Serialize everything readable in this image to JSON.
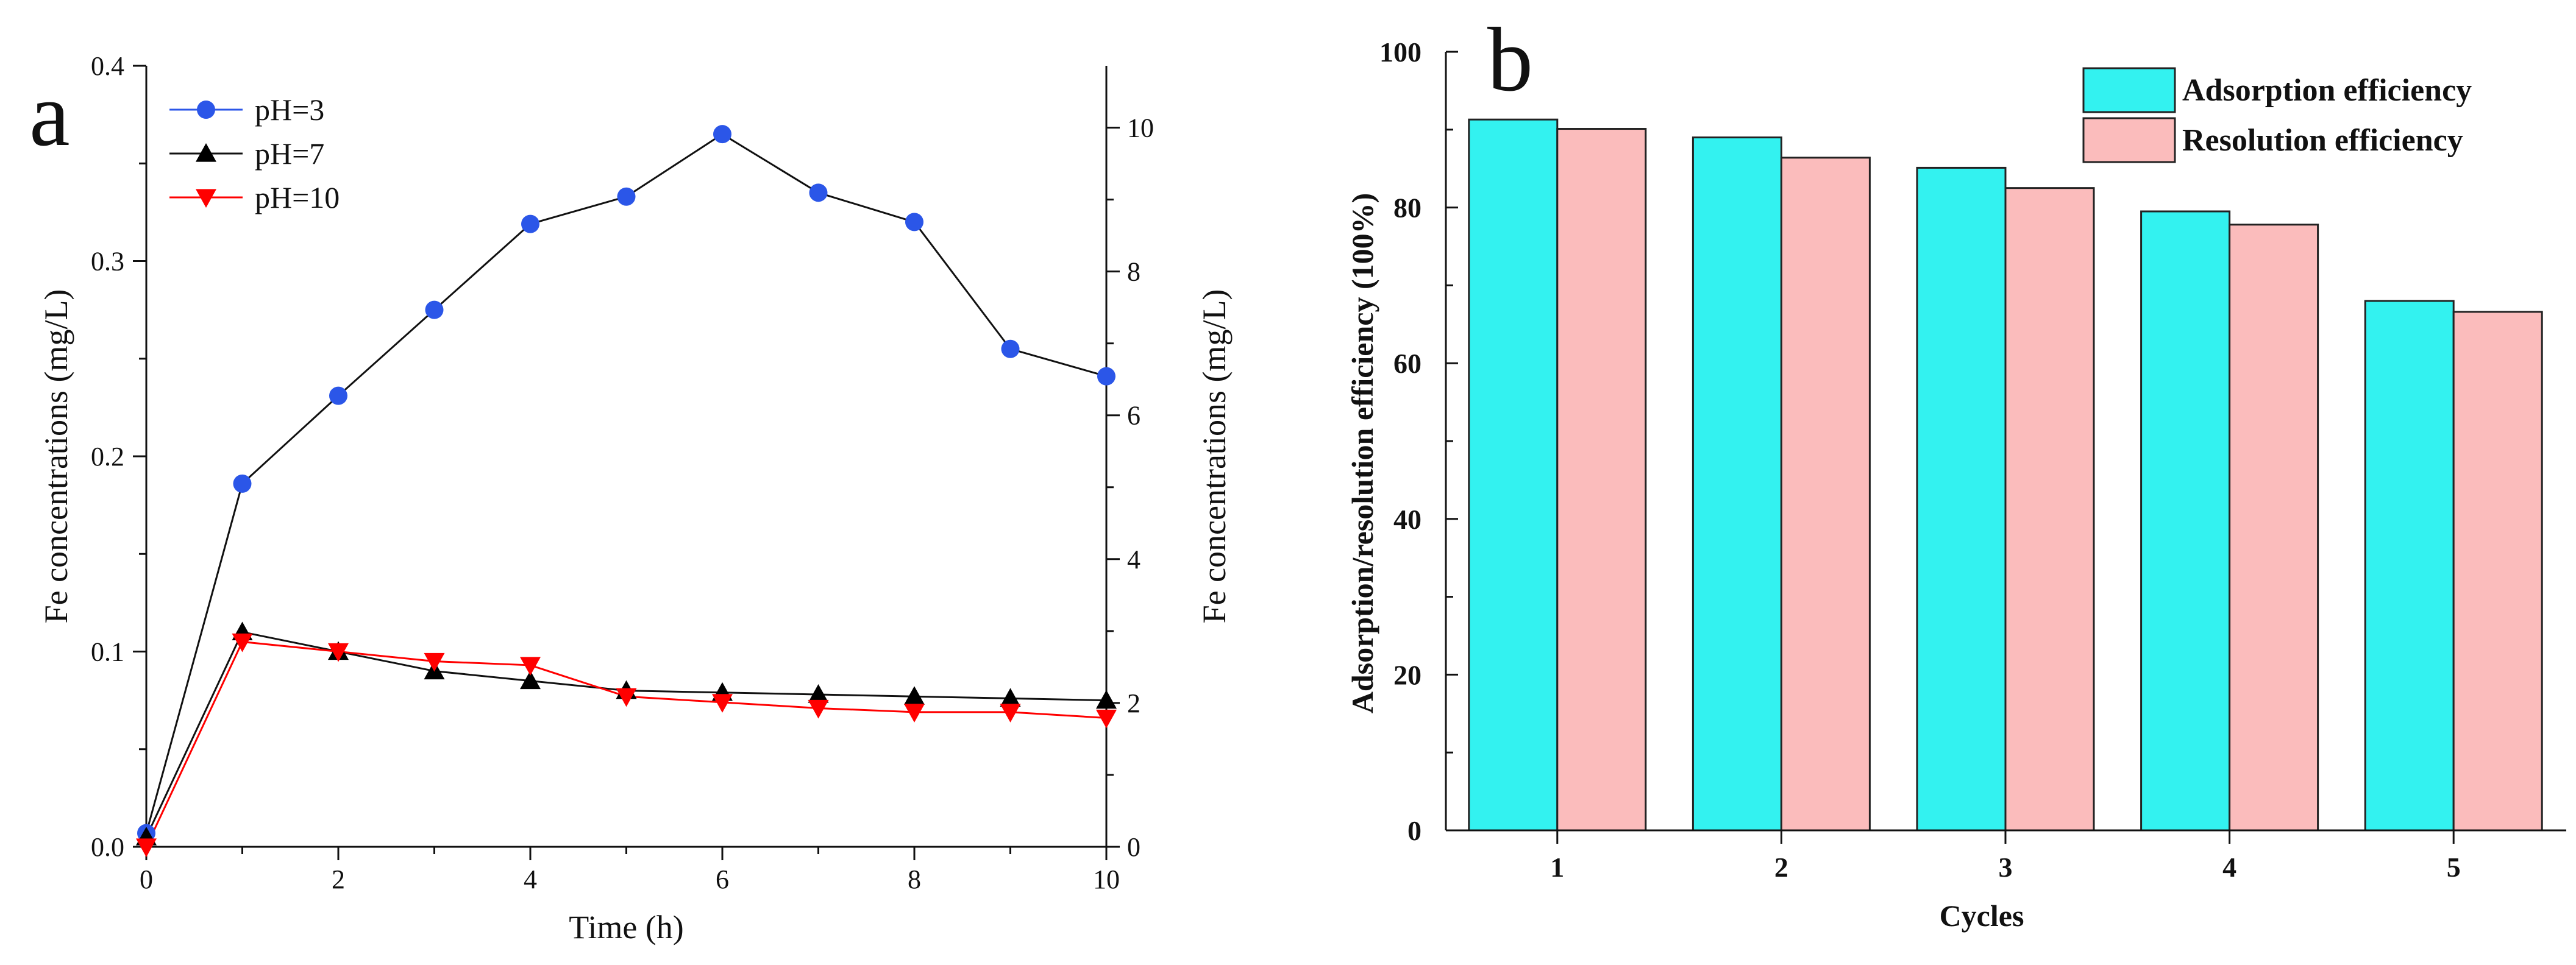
{
  "chart_data": [
    {
      "type": "line",
      "panel_label": "a",
      "xlabel": "Time (h)",
      "ylabel": "Fe concentrations (mg/L)",
      "ylabel_right": "Fe concentrations (mg/L)",
      "xlim": [
        0,
        10
      ],
      "ylim": [
        0,
        0.4
      ],
      "ylim_right": [
        0,
        10.86
      ],
      "x_ticks": [
        0,
        2,
        4,
        6,
        8,
        10
      ],
      "y_ticks": [
        0.0,
        0.1,
        0.2,
        0.3,
        0.4
      ],
      "y_tick_labels": [
        "0.0",
        "0.1",
        "0.2",
        "0.3",
        "0.4"
      ],
      "y_right_ticks": [
        0,
        2,
        4,
        6,
        8,
        10
      ],
      "legend_position": "top-left",
      "x": [
        0,
        1,
        2,
        3,
        4,
        5,
        6,
        7,
        8,
        9,
        10
      ],
      "series": [
        {
          "name": "pH=3",
          "marker": "circle",
          "color": "#2b56e8",
          "line_color": "#111111",
          "values": [
            0.007,
            0.186,
            0.231,
            0.275,
            0.319,
            0.333,
            0.365,
            0.335,
            0.32,
            0.255,
            0.241
          ]
        },
        {
          "name": "pH=7",
          "marker": "triangle-up",
          "color": "#000000",
          "line_color": "#111111",
          "values": [
            0.005,
            0.11,
            0.1,
            0.09,
            0.085,
            0.08,
            0.079,
            0.078,
            0.077,
            0.076,
            0.075
          ]
        },
        {
          "name": "pH=10",
          "marker": "triangle-down",
          "color": "#ff0000",
          "line_color": "#ff0000",
          "values": [
            0.0,
            0.105,
            0.1,
            0.095,
            0.093,
            0.077,
            0.074,
            0.071,
            0.069,
            0.069,
            0.066
          ]
        }
      ]
    },
    {
      "type": "bar",
      "panel_label": "b",
      "xlabel": "Cycles",
      "ylabel": "Adsorption/resolution efficiency (100%)",
      "ylim": [
        0,
        100
      ],
      "y_ticks": [
        0,
        20,
        40,
        60,
        80,
        100
      ],
      "categories": [
        "1",
        "2",
        "3",
        "4",
        "5"
      ],
      "legend_position": "top-right",
      "series": [
        {
          "name": "Adsorption efficiency",
          "color": "#33f2f0",
          "values": [
            91.3,
            89.0,
            85.1,
            79.5,
            68.0
          ]
        },
        {
          "name": "Resolution efficiency",
          "color": "#fbbcbc",
          "values": [
            90.1,
            86.4,
            82.5,
            77.8,
            66.6
          ]
        }
      ]
    }
  ]
}
